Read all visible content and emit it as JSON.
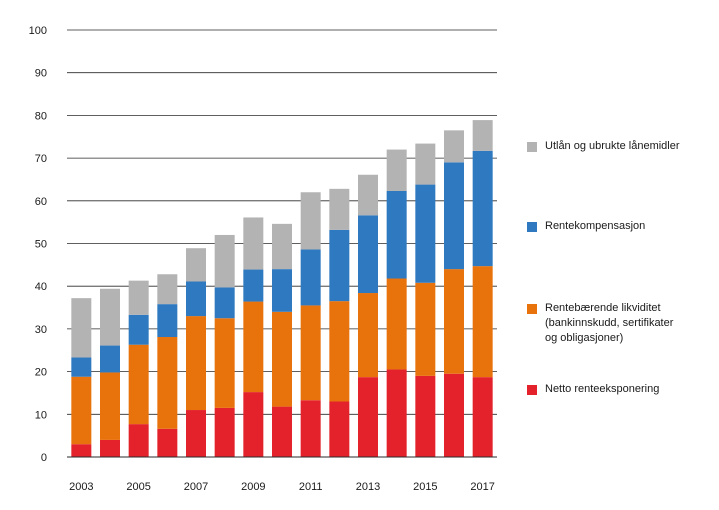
{
  "chart_data": {
    "type": "bar",
    "stacked": true,
    "title": "",
    "xlabel": "",
    "ylabel": "",
    "ylim": [
      0,
      100
    ],
    "yticks": [
      0,
      10,
      20,
      30,
      40,
      50,
      60,
      70,
      80,
      90,
      100
    ],
    "grid": true,
    "legend_position": "right",
    "categories": [
      "2003",
      "2004",
      "2005",
      "2006",
      "2007",
      "2008",
      "2009",
      "2010",
      "2011",
      "2012",
      "2013",
      "2014",
      "2015",
      "2016",
      "2017"
    ],
    "xtick_labels": [
      "2003",
      "2005",
      "2007",
      "2009",
      "2011",
      "2013",
      "2015",
      "2017"
    ],
    "series": [
      {
        "name": "Netto renteeksponering",
        "color": "#e4222c",
        "values": [
          3,
          4,
          7.7,
          6.6,
          11,
          11.5,
          15.2,
          11.8,
          13.3,
          13,
          18.7,
          20.5,
          19,
          19.5,
          18.7
        ]
      },
      {
        "name": "Rentebærende likviditet\n(bankinnskudd, sertifikater\nog obligasjoner)",
        "color": "#e8720c",
        "values": [
          15.8,
          15.8,
          18.6,
          21.5,
          22,
          21,
          21.2,
          22.2,
          22.2,
          23.5,
          19.7,
          21.3,
          21.8,
          24.5,
          26
        ]
      },
      {
        "name": "Rentekompensasjon",
        "color": "#2f79c0",
        "values": [
          4.5,
          6.3,
          7,
          7.7,
          8.1,
          7.2,
          7.5,
          10,
          13.1,
          16.7,
          18.2,
          20.5,
          23,
          25,
          27
        ]
      },
      {
        "name": "Utlån og ubrukte lånemidler",
        "color": "#b3b3b3",
        "values": [
          13.9,
          13.3,
          8,
          7,
          7.8,
          12.3,
          12.2,
          10.6,
          13.4,
          9.6,
          9.5,
          9.7,
          9.6,
          7.5,
          7.2
        ]
      }
    ],
    "legend_order": [
      3,
      2,
      1,
      0
    ]
  }
}
